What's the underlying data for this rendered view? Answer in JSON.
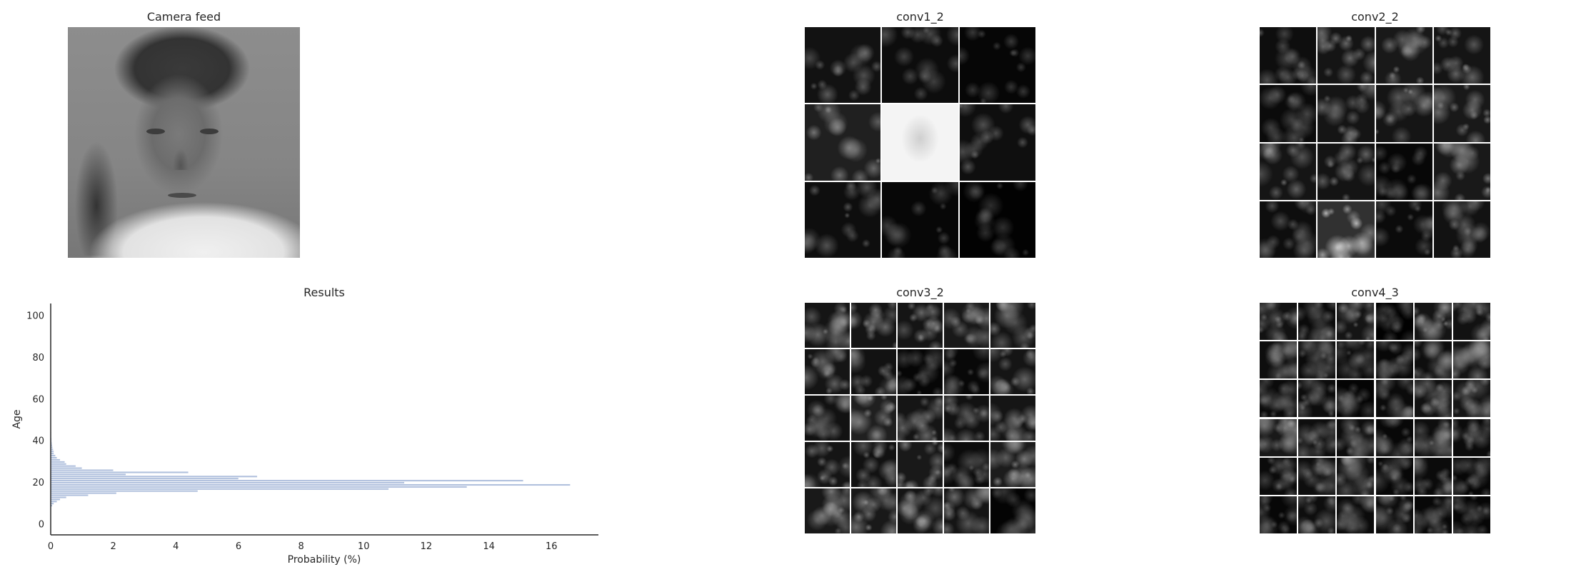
{
  "panels": {
    "camera_title": "Camera feed",
    "conv1_title": "conv1_2",
    "conv2_title": "conv2_2",
    "conv3_title": "conv3_2",
    "conv4_title": "conv4_3",
    "results_title": "Results"
  },
  "feature_maps": {
    "conv1": {
      "rows": 3,
      "cols": 3,
      "tones": [
        0.25,
        0.18,
        0.08,
        0.45,
        0.92,
        0.22,
        0.2,
        0.1,
        0.03
      ]
    },
    "conv2": {
      "rows": 4,
      "cols": 4,
      "tones": [
        0.2,
        0.3,
        0.35,
        0.3,
        0.15,
        0.3,
        0.3,
        0.35,
        0.3,
        0.28,
        0.1,
        0.35,
        0.2,
        0.7,
        0.15,
        0.25
      ]
    },
    "conv3": {
      "rows": 5,
      "cols": 5,
      "tones": [
        0.3,
        0.3,
        0.3,
        0.35,
        0.3,
        0.3,
        0.25,
        0.08,
        0.12,
        0.3,
        0.25,
        0.45,
        0.3,
        0.25,
        0.3,
        0.3,
        0.25,
        0.35,
        0.15,
        0.4,
        0.35,
        0.35,
        0.3,
        0.3,
        0.05
      ]
    },
    "conv4": {
      "rows": 6,
      "cols": 6,
      "tones": [
        0.25,
        0.15,
        0.3,
        0.02,
        0.3,
        0.25,
        0.2,
        0.15,
        0.1,
        0.12,
        0.2,
        0.3,
        0.15,
        0.18,
        0.06,
        0.15,
        0.25,
        0.3,
        0.35,
        0.2,
        0.2,
        0.12,
        0.2,
        0.15,
        0.15,
        0.2,
        0.25,
        0.1,
        0.15,
        0.1,
        0.1,
        0.2,
        0.15,
        0.2,
        0.12,
        0.08
      ]
    }
  },
  "chart_data": {
    "type": "bar",
    "orientation": "horizontal",
    "title": "Results",
    "xlabel": "Probability (%)",
    "ylabel": "Age",
    "xlim": [
      0,
      17.5
    ],
    "ylim": [
      -5,
      106
    ],
    "xticks": [
      0,
      2,
      4,
      6,
      8,
      10,
      12,
      14,
      16
    ],
    "yticks": [
      0,
      20,
      40,
      60,
      80,
      100
    ],
    "grid": false,
    "bar_color": "#b0c0dd",
    "ages": [
      9,
      10,
      11,
      12,
      13,
      14,
      15,
      16,
      17,
      18,
      19,
      20,
      21,
      22,
      23,
      24,
      25,
      26,
      27,
      28,
      29,
      30,
      31,
      32,
      33,
      34,
      35,
      36,
      37,
      38,
      39,
      40,
      41,
      42,
      43,
      44,
      45,
      46,
      47,
      48,
      49,
      50
    ],
    "values": [
      0.05,
      0.1,
      0.2,
      0.3,
      0.5,
      1.2,
      2.1,
      4.7,
      10.8,
      13.3,
      16.6,
      11.3,
      15.1,
      6.0,
      6.6,
      2.4,
      4.4,
      2.0,
      1.0,
      0.8,
      0.5,
      0.45,
      0.3,
      0.2,
      0.15,
      0.1,
      0.1,
      0.08,
      0.06,
      0.05,
      0.04,
      0.03,
      0.03,
      0.02,
      0.02,
      0.02,
      0.01,
      0.01,
      0.01,
      0.01,
      0.01,
      0.01
    ]
  }
}
